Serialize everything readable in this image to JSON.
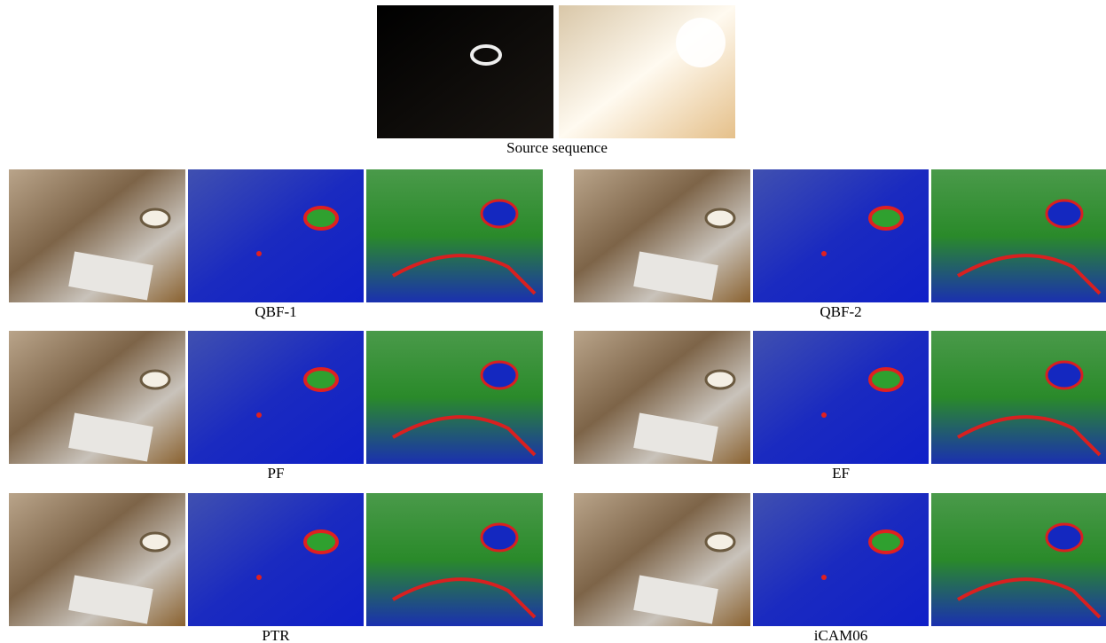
{
  "source": {
    "caption": "Source sequence"
  },
  "panels": [
    {
      "label": "QBF-1"
    },
    {
      "label": "QBF-2"
    },
    {
      "label": "PF"
    },
    {
      "label": "EF"
    },
    {
      "label": "PTR"
    },
    {
      "label": "iCAM06"
    }
  ]
}
